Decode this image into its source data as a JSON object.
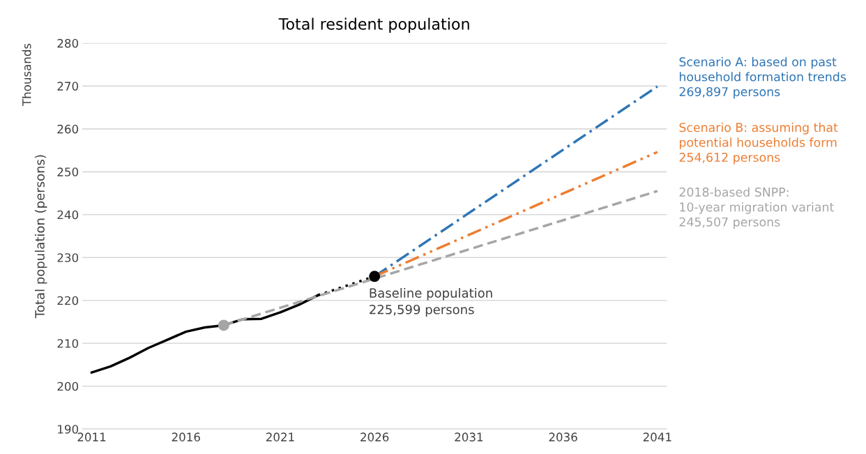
{
  "chart_data": {
    "type": "line",
    "title": "Total resident population",
    "ylabel": "Total population (persons)",
    "xlim": [
      2010.5,
      2041.5
    ],
    "xticks": [
      2011,
      2016,
      2021,
      2026,
      2031,
      2036,
      2041
    ],
    "ylim": [
      190,
      280
    ],
    "yticks": [
      190,
      200,
      210,
      220,
      230,
      240,
      250,
      260,
      270,
      280
    ],
    "grid": "y",
    "legend": false,
    "annotations": [
      "Thousands",
      {
        "text": "Baseline population\n225,599 persons",
        "x": 2026,
        "y": 225.6
      }
    ],
    "series": [
      {
        "color": "#000000",
        "line_style": "solid",
        "marker": "none",
        "x": [
          2011,
          2012,
          2013,
          2014,
          2015,
          2016,
          2017,
          2018,
          2019,
          2020,
          2021,
          2022,
          2023
        ],
        "values": [
          203.2,
          204.6,
          206.6,
          208.9,
          210.8,
          212.7,
          213.7,
          214.2,
          215.6,
          215.7,
          217.2,
          219.0,
          221.2
        ]
      },
      {
        "color": "#000000",
        "line_style": "dotted",
        "marker": "none",
        "x": [
          2023,
          2026
        ],
        "values": [
          221.2,
          225.6
        ]
      },
      {
        "name": "2018-based SNPP:\n10-year migration variant\n245,507 persons",
        "color": "#a5a5a5",
        "line_style": "dashed",
        "marker": "none",
        "x": [
          2018,
          2041
        ],
        "values": [
          214.2,
          245.5
        ]
      },
      {
        "name": "Scenario A: based on past\nhousehold formation trends\n269,897 persons",
        "color": "#2e75b6",
        "line_style": "dashdot",
        "marker": "none",
        "x": [
          2026,
          2041
        ],
        "values": [
          225.6,
          269.9
        ]
      },
      {
        "name": "Scenario B: assuming that\npotential households form\n254,612 persons",
        "color": "#ed7d31",
        "line_style": "dashdotdot",
        "marker": "none",
        "x": [
          2026,
          2041
        ],
        "values": [
          225.6,
          254.6
        ]
      },
      {
        "type": "scatter",
        "color": "#a5a5a5",
        "marker": "circle",
        "x": [
          2018
        ],
        "values": [
          214.2
        ]
      },
      {
        "type": "scatter",
        "color": "#000000",
        "marker": "circle",
        "x": [
          2026
        ],
        "values": [
          225.6
        ]
      }
    ]
  }
}
